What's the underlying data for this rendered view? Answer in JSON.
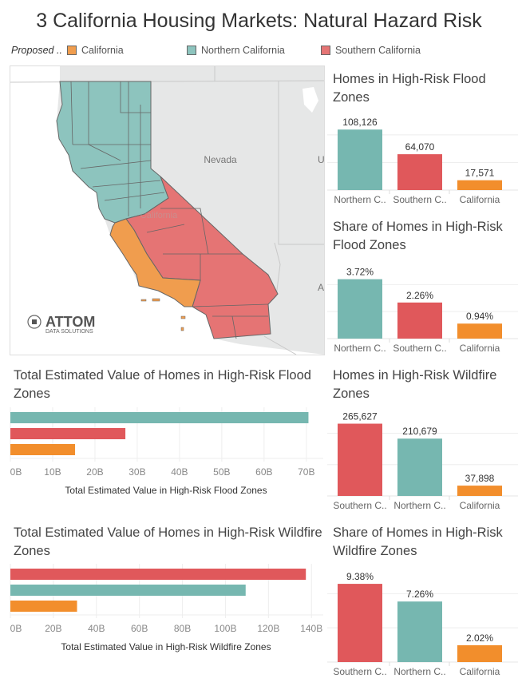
{
  "title": "3 California Housing Markets: Natural Hazard Risk",
  "legend": {
    "title": "Proposed ..",
    "items": [
      {
        "label": "California",
        "color": "#f09d4e"
      },
      {
        "label": "Northern California",
        "color": "#8dc4be"
      },
      {
        "label": "Southern California",
        "color": "#e57474"
      }
    ]
  },
  "map": {
    "labels": {
      "state": "Nevada",
      "state_partial_u": "U",
      "state_partial_a": "A",
      "california_faded": "California"
    },
    "logo": {
      "name": "ATTOM",
      "tagline": "DATA SOLUTIONS"
    }
  },
  "colors": {
    "northern": "#76b7b0",
    "southern": "#e0585b",
    "california": "#f28e2c"
  },
  "chart_data": [
    {
      "type": "bar",
      "title": "Homes in High-Risk Flood Zones",
      "categories": [
        "Northern C..",
        "Southern C..",
        "California"
      ],
      "series_keys": [
        "northern",
        "southern",
        "california"
      ],
      "values": [
        108126,
        64070,
        17571
      ],
      "labels": [
        "108,126",
        "64,070",
        "17,571"
      ],
      "ylim": [
        0,
        137000
      ]
    },
    {
      "type": "bar",
      "title": "Share of Homes in High-Risk Flood Zones",
      "categories": [
        "Northern C..",
        "Southern C..",
        "California"
      ],
      "series_keys": [
        "northern",
        "southern",
        "california"
      ],
      "values": [
        3.72,
        2.26,
        0.94
      ],
      "labels": [
        "3.72%",
        "2.26%",
        "0.94%"
      ],
      "ylim": [
        0,
        4.7
      ]
    },
    {
      "type": "bar",
      "title": "Homes in High-Risk Wildfire Zones",
      "categories": [
        "Southern C..",
        "Northern C..",
        "California"
      ],
      "series_keys": [
        "southern",
        "northern",
        "california"
      ],
      "values": [
        265627,
        210679,
        37898
      ],
      "labels": [
        "265,627",
        "210,679",
        "37,898"
      ],
      "ylim": [
        0,
        320000
      ]
    },
    {
      "type": "bar",
      "title": "Share of Homes in High-Risk Wildfire Zones",
      "categories": [
        "Southern C..",
        "Northern C..",
        "California"
      ],
      "series_keys": [
        "southern",
        "northern",
        "california"
      ],
      "values": [
        9.38,
        7.26,
        2.02
      ],
      "labels": [
        "9.38%",
        "7.26%",
        "2.02%"
      ],
      "ylim": [
        0,
        11.4
      ]
    },
    {
      "type": "bar",
      "orientation": "horizontal",
      "title": "Total Estimated Value of Homes in High-Risk Flood Zones",
      "xlabel": "Total Estimated Value in High-Risk Flood Zones",
      "series_keys": [
        "northern",
        "southern",
        "california"
      ],
      "values": [
        70.5,
        27.2,
        15.3
      ],
      "unit": "B",
      "ticks": [
        "0B",
        "10B",
        "20B",
        "30B",
        "40B",
        "50B",
        "60B",
        "70B"
      ],
      "tick_values": [
        0,
        10,
        20,
        30,
        40,
        50,
        60,
        70
      ],
      "xlim": [
        0,
        74
      ]
    },
    {
      "type": "bar",
      "orientation": "horizontal",
      "title": "Total Estimated Value of Homes in High-Risk Wildfire Zones",
      "xlabel": "Total Estimated Value in High-Risk Wildfire Zones",
      "series_keys": [
        "southern",
        "northern",
        "california"
      ],
      "values": [
        137.4,
        109.4,
        31.0
      ],
      "unit": "B",
      "ticks": [
        "0B",
        "20B",
        "40B",
        "60B",
        "80B",
        "100B",
        "120B",
        "140B"
      ],
      "tick_values": [
        0,
        20,
        40,
        60,
        80,
        100,
        120,
        140
      ],
      "xlim": [
        0,
        144
      ]
    }
  ]
}
